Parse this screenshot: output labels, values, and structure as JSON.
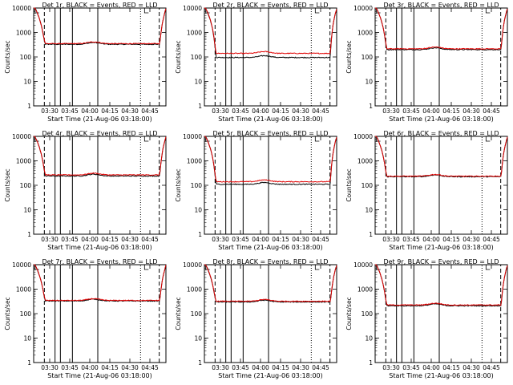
{
  "common": {
    "ylabel": "Counts/sec",
    "xlabel": "Start Time (21-Aug-06 03:18:00)",
    "xticks": [
      "03:30",
      "03:45",
      "04:00",
      "04:15",
      "04:30",
      "04:45"
    ],
    "yticks": [
      "1",
      "10",
      "100",
      "1000",
      "10000"
    ],
    "colors": {
      "events": "#000000",
      "lld": "#e00000"
    }
  },
  "chart_data": [
    {
      "type": "line",
      "title": "Det 1r, BLACK = Events, RED = LLD",
      "xlabel": "Start Time (21-Aug-06 03:18:00)",
      "ylabel": "Counts/sec",
      "ylog": true,
      "ylim": [
        1,
        10000
      ],
      "x_range": [
        "03:18",
        "04:57"
      ],
      "series": [
        {
          "name": "Events",
          "color": "#000000",
          "baseline": 330
        },
        {
          "name": "LLD",
          "color": "#e00000",
          "baseline": 350
        }
      ]
    },
    {
      "type": "line",
      "title": "Det 2r, BLACK = Events, RED = LLD",
      "xlabel": "Start Time (21-Aug-06 03:18:00)",
      "ylabel": "Counts/sec",
      "ylog": true,
      "ylim": [
        1,
        10000
      ],
      "x_range": [
        "03:18",
        "04:57"
      ],
      "series": [
        {
          "name": "Events",
          "color": "#000000",
          "baseline": 95
        },
        {
          "name": "LLD",
          "color": "#e00000",
          "baseline": 140
        }
      ]
    },
    {
      "type": "line",
      "title": "Det 3r, BLACK = Events, RED = LLD",
      "xlabel": "Start Time (21-Aug-06 03:18:00)",
      "ylabel": "Counts/sec",
      "ylog": true,
      "ylim": [
        1,
        10000
      ],
      "x_range": [
        "03:18",
        "04:57"
      ],
      "series": [
        {
          "name": "Events",
          "color": "#000000",
          "baseline": 200
        },
        {
          "name": "LLD",
          "color": "#e00000",
          "baseline": 215
        }
      ]
    },
    {
      "type": "line",
      "title": "Det 4r, BLACK = Events, RED = LLD",
      "xlabel": "Start Time (21-Aug-06 03:18:00)",
      "ylabel": "Counts/sec",
      "ylog": true,
      "ylim": [
        1,
        10000
      ],
      "x_range": [
        "03:18",
        "04:57"
      ],
      "series": [
        {
          "name": "Events",
          "color": "#000000",
          "baseline": 240
        },
        {
          "name": "LLD",
          "color": "#e00000",
          "baseline": 265
        }
      ]
    },
    {
      "type": "line",
      "title": "Det 5r, BLACK = Events, RED = LLD",
      "xlabel": "Start Time (21-Aug-06 03:18:00)",
      "ylabel": "Counts/sec",
      "ylog": true,
      "ylim": [
        1,
        10000
      ],
      "x_range": [
        "03:18",
        "04:57"
      ],
      "series": [
        {
          "name": "Events",
          "color": "#000000",
          "baseline": 110
        },
        {
          "name": "LLD",
          "color": "#e00000",
          "baseline": 140
        }
      ]
    },
    {
      "type": "line",
      "title": "Det 6r, BLACK = Events, RED = LLD",
      "xlabel": "Start Time (21-Aug-06 03:18:00)",
      "ylabel": "Counts/sec",
      "ylog": true,
      "ylim": [
        1,
        10000
      ],
      "x_range": [
        "03:18",
        "04:57"
      ],
      "series": [
        {
          "name": "Events",
          "color": "#000000",
          "baseline": 225
        },
        {
          "name": "LLD",
          "color": "#e00000",
          "baseline": 235
        }
      ]
    },
    {
      "type": "line",
      "title": "Det 7r, BLACK = Events, RED = LLD",
      "xlabel": "Start Time (21-Aug-06 03:18:00)",
      "ylabel": "Counts/sec",
      "ylog": true,
      "ylim": [
        1,
        10000
      ],
      "x_range": [
        "03:18",
        "04:57"
      ],
      "series": [
        {
          "name": "Events",
          "color": "#000000",
          "baseline": 330
        },
        {
          "name": "LLD",
          "color": "#e00000",
          "baseline": 345
        }
      ]
    },
    {
      "type": "line",
      "title": "Det 8r, BLACK = Events, RED = LLD",
      "xlabel": "Start Time (21-Aug-06 03:18:00)",
      "ylabel": "Counts/sec",
      "ylog": true,
      "ylim": [
        1,
        10000
      ],
      "x_range": [
        "03:18",
        "04:57"
      ],
      "series": [
        {
          "name": "Events",
          "color": "#000000",
          "baseline": 300
        },
        {
          "name": "LLD",
          "color": "#e00000",
          "baseline": 320
        }
      ]
    },
    {
      "type": "line",
      "title": "Det 9r, BLACK = Events, RED = LLD",
      "xlabel": "Start Time (21-Aug-06 03:18:00)",
      "ylabel": "Counts/sec",
      "ylog": true,
      "ylim": [
        1,
        10000
      ],
      "x_range": [
        "03:18",
        "04:57"
      ],
      "series": [
        {
          "name": "Events",
          "color": "#000000",
          "baseline": 210
        },
        {
          "name": "LLD",
          "color": "#e00000",
          "baseline": 225
        }
      ]
    }
  ]
}
